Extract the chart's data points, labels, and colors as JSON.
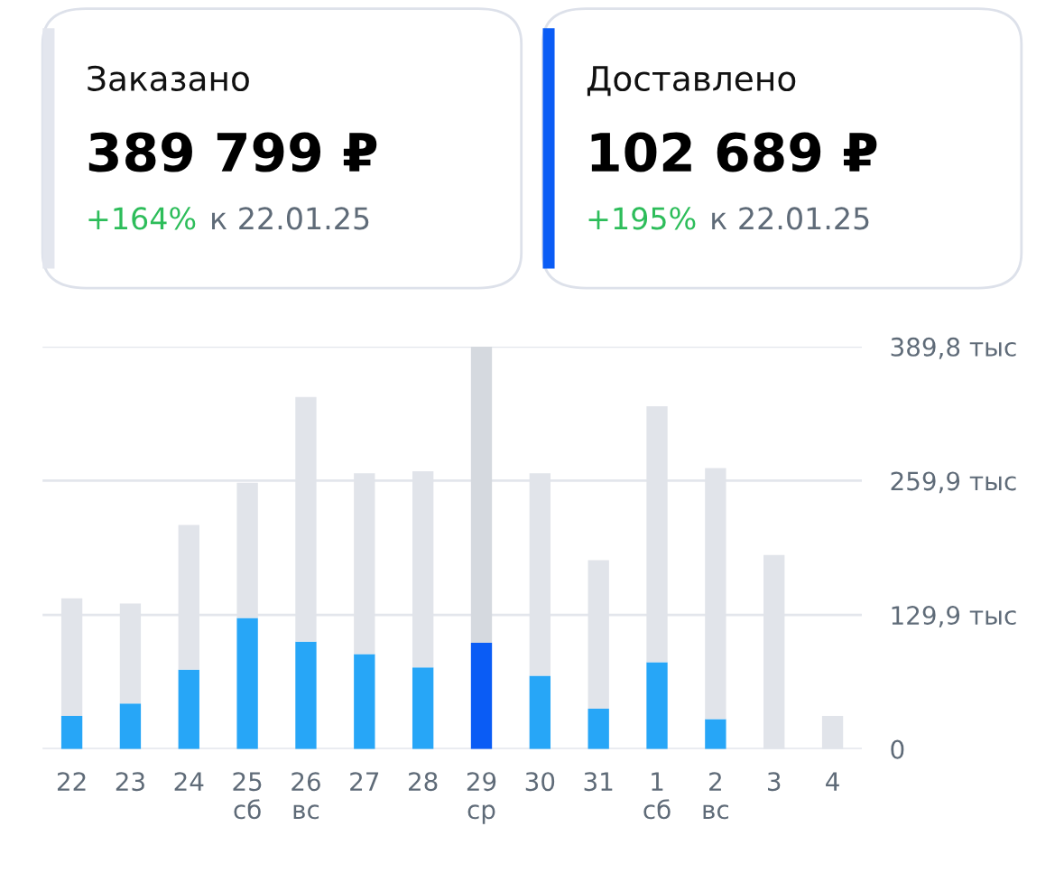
{
  "chart_data": [
    {
      "type": "other",
      "title": "Заказано",
      "subtitle": "389 799 ₽",
      "annotations": [
        "+164%",
        "к 22.01.25"
      ],
      "color": "#e3e6ee"
    },
    {
      "type": "other",
      "title": "Доставлено",
      "subtitle": "102 689 ₽",
      "annotations": [
        "+195%",
        "к 22.01.25"
      ],
      "color": "#0a5cf5"
    },
    {
      "type": "bar",
      "categories": [
        "22",
        "23",
        "24",
        "25\nсб",
        "26\nвс",
        "27",
        "28",
        "29\nср",
        "30",
        "31",
        "1\nсб",
        "2\nвс",
        "3",
        "4"
      ],
      "series": [
        {
          "colors": [
            "#27a6f7",
            "#27a6f7",
            "#27a6f7",
            "#27a6f7",
            "#27a6f7",
            "#27a6f7",
            "#27a6f7",
            "#0a5cf5",
            "#27a6f7",
            "#27a6f7",
            "#27a6f7",
            "#27a6f7",
            "#27a6f7",
            "#27a6f7"
          ],
          "values": [
            32,
            44,
            77,
            127,
            104,
            92,
            79,
            103,
            71,
            39,
            84,
            29,
            null,
            null
          ]
        },
        {
          "colors": [
            "#e1e4ea",
            "#e1e4ea",
            "#e1e4ea",
            "#e1e4ea",
            "#e1e4ea",
            "#e1e4ea",
            "#e1e4ea",
            "#d5d9df",
            "#e1e4ea",
            "#e1e4ea",
            "#e1e4ea",
            "#e1e4ea",
            "#e1e4ea",
            "#e1e4ea"
          ],
          "values": [
            114,
            97,
            140,
            131,
            237,
            175,
            190,
            287,
            196,
            144,
            248,
            243,
            188,
            32
          ]
        }
      ],
      "stacked": true,
      "ylim": [
        0,
        389.8
      ],
      "yticks": [
        {
          "value": 0,
          "label": "0"
        },
        {
          "value": 129.9,
          "label": "129,9 тыс"
        },
        {
          "value": 259.9,
          "label": "259,9 тыс"
        },
        {
          "value": 389.8,
          "label": "389,8 тыс"
        }
      ],
      "grid": "y",
      "legend": false
    }
  ]
}
